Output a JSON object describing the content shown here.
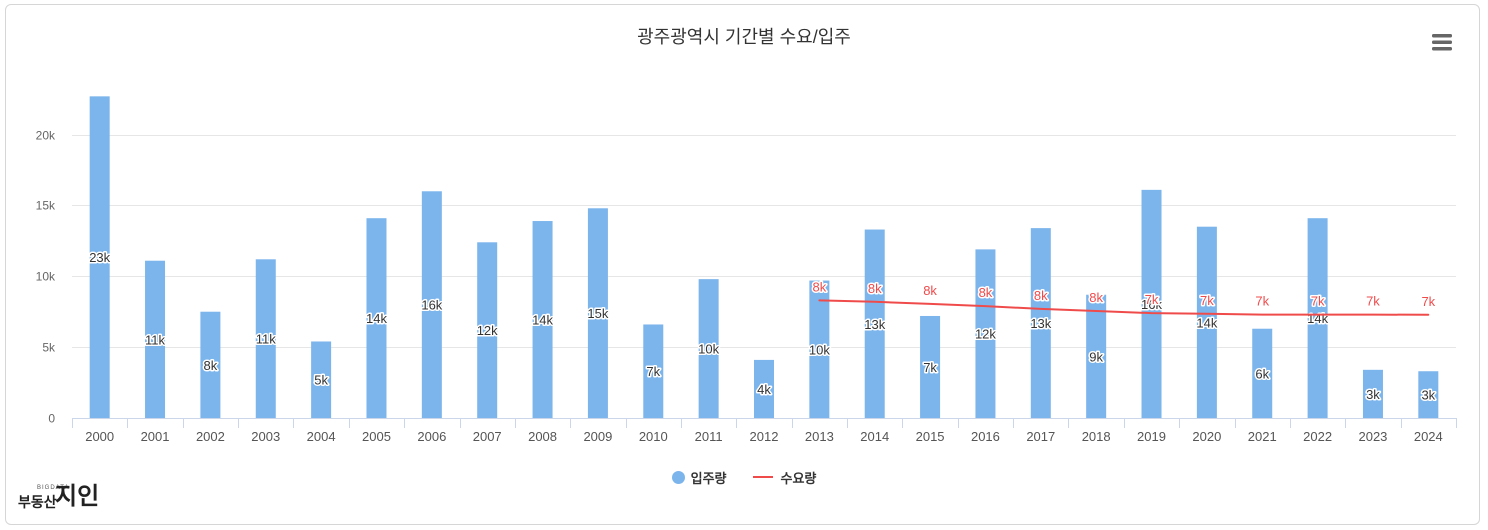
{
  "chart_data": {
    "type": "bar",
    "title": "광주광역시 기간별 수요/입주",
    "categories": [
      "2000",
      "2001",
      "2002",
      "2003",
      "2004",
      "2005",
      "2006",
      "2007",
      "2008",
      "2009",
      "2010",
      "2011",
      "2012",
      "2013",
      "2014",
      "2015",
      "2016",
      "2017",
      "2018",
      "2019",
      "2020",
      "2021",
      "2022",
      "2023",
      "2024"
    ],
    "series": [
      {
        "name": "입주량",
        "type": "bar",
        "color": "#7cb5ec",
        "values": [
          22700,
          11100,
          7500,
          11200,
          5400,
          14100,
          16000,
          12400,
          13900,
          14800,
          6600,
          9800,
          4100,
          9700,
          13300,
          7200,
          11900,
          13400,
          8700,
          16100,
          13500,
          6300,
          14100,
          3400,
          3300
        ],
        "data_labels": [
          "23k",
          "11k",
          "8k",
          "11k",
          "5k",
          "14k",
          "16k",
          "12k",
          "14k",
          "15k",
          "7k",
          "10k",
          "4k",
          "10k",
          "13k",
          "7k",
          "12k",
          "13k",
          "9k",
          "16k",
          "14k",
          "6k",
          "14k",
          "3k",
          "3k"
        ]
      },
      {
        "name": "수요량",
        "type": "line",
        "color": "#f04b4b",
        "values": [
          null,
          null,
          null,
          null,
          null,
          null,
          null,
          null,
          null,
          null,
          null,
          null,
          null,
          8300,
          8200,
          8050,
          7900,
          7700,
          7550,
          7400,
          7350,
          7300,
          7300,
          7300,
          7280
        ],
        "data_labels": [
          null,
          null,
          null,
          null,
          null,
          null,
          null,
          null,
          null,
          null,
          null,
          null,
          null,
          "8k",
          "8k",
          "8k",
          "8k",
          "8k",
          "8k",
          "7k",
          "7k",
          "7k",
          "7k",
          "7k",
          "7k"
        ]
      }
    ],
    "ylim": [
      0,
      23500
    ],
    "yticks": [
      0,
      5000,
      10000,
      15000,
      20000
    ],
    "ytick_labels": [
      "0",
      "5k",
      "10k",
      "15k",
      "20k"
    ],
    "grid": true,
    "legend": "bottom-center"
  },
  "menu": {
    "icon": "hamburger-menu-icon"
  },
  "logo": {
    "tag": "BIGDATA",
    "prefix": "부동산",
    "main": "지인"
  }
}
